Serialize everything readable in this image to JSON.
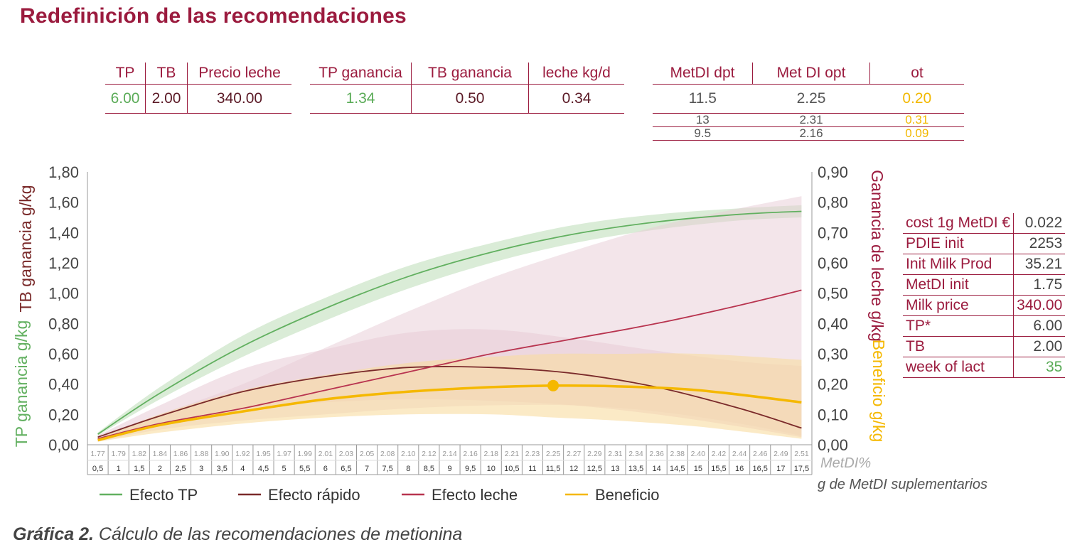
{
  "title": "Redefinición de las recomendaciones",
  "caption_bold": "Gráfica 2.",
  "caption_rest": " Cálculo de las recomendaciones de metionina",
  "table1": {
    "headers": [
      "TP",
      "TB",
      "Precio leche"
    ],
    "values": [
      "6.00",
      "2.00",
      "340.00"
    ]
  },
  "table2": {
    "headers": [
      "TP ganancia",
      "TB ganancia",
      "leche kg/d"
    ],
    "values": [
      "1.34",
      "0.50",
      "0.34"
    ]
  },
  "table3": {
    "headers": [
      "MetDI dpt",
      "Met DI opt",
      "ot"
    ],
    "rows": [
      [
        "11.5",
        "2.25",
        "0.20"
      ],
      [
        "13",
        "2.31",
        "0.31"
      ],
      [
        "9.5",
        "2.16",
        "0.09"
      ]
    ]
  },
  "side_table": [
    {
      "label": "cost 1g MetDI €",
      "value": "0.022"
    },
    {
      "label": "PDIE init",
      "value": "2253"
    },
    {
      "label": "Init Milk Prod",
      "value": "35.21"
    },
    {
      "label": "MetDI init",
      "value": "1.75"
    },
    {
      "label": "Milk price",
      "value": "340.00"
    },
    {
      "label": "TP*",
      "value": "6.00"
    },
    {
      "label": "TB",
      "value": "2.00"
    },
    {
      "label": "week of lact",
      "value": "35"
    }
  ],
  "colors": {
    "tp": "#62b060",
    "rapido": "#7a2a2a",
    "leche": "#b8344f",
    "beneficio": "#f5b800",
    "accent": "#9b1b3e",
    "tp_band": "#cde6c9",
    "leche_band": "#e8cbd6",
    "benef_band": "#f8dca0"
  },
  "chart_data": {
    "type": "line",
    "ylabel_left_top": "TB ganancia g/kg",
    "ylabel_left_bottom": "TP ganancia  g/kg",
    "ylabel_right_top": "Ganancia de leche g/kg",
    "ylabel_right_bottom": "Beneficio g/kg",
    "xlabel_top": "MetDI%",
    "xlabel_bottom": "g de MetDI suplementarios",
    "ylim_left": [
      0,
      1.8
    ],
    "ylim_right": [
      0,
      0.9
    ],
    "yticks_left": [
      "0,00",
      "0,20",
      "0,40",
      "0,60",
      "0,80",
      "1,00",
      "1,20",
      "1,40",
      "1,60",
      "1,80"
    ],
    "yticks_right": [
      "0,00",
      "0,10",
      "0,20",
      "0,30",
      "0,40",
      "0,50",
      "0,60",
      "0,70",
      "0,80",
      "0,90"
    ],
    "x_metdi_pct": [
      "1.77",
      "1.79",
      "1.82",
      "1.84",
      "1.86",
      "1.88",
      "1.90",
      "1.92",
      "1.95",
      "1.97",
      "1.99",
      "2.01",
      "2.03",
      "2.05",
      "2.08",
      "2.10",
      "2.12",
      "2.14",
      "2.16",
      "2.18",
      "2.21",
      "2.23",
      "2.25",
      "2.27",
      "2.29",
      "2.31",
      "2.34",
      "2.36",
      "2.38",
      "2.40",
      "2.42",
      "2.44",
      "2.46",
      "2.49",
      "2.51"
    ],
    "x_grams": [
      "0,5",
      "1",
      "1,5",
      "2",
      "2,5",
      "3",
      "3,5",
      "4",
      "4,5",
      "5",
      "5,5",
      "6",
      "6,5",
      "7",
      "7,5",
      "8",
      "8,5",
      "9",
      "9,5",
      "10",
      "10,5",
      "11",
      "11,5",
      "12",
      "12,5",
      "13",
      "13,5",
      "14",
      "14,5",
      "15",
      "15,5",
      "16",
      "16,5",
      "17",
      "17,5"
    ],
    "legend": [
      "Efecto TP",
      "Efecto rápido",
      "Efecto leche",
      "Beneficio"
    ],
    "optimum_marker": {
      "x": 11.5,
      "y": 0.195
    },
    "series": [
      {
        "name": "Efecto TP",
        "axis": "left",
        "x": [
          0.5,
          2,
          4,
          6,
          8,
          10,
          12,
          14,
          16,
          17.5
        ],
        "y": [
          0.07,
          0.34,
          0.65,
          0.9,
          1.11,
          1.27,
          1.39,
          1.47,
          1.52,
          1.54
        ],
        "band_lo": [
          0.06,
          0.3,
          0.58,
          0.82,
          1.03,
          1.2,
          1.33,
          1.42,
          1.48,
          1.5
        ],
        "band_hi": [
          0.08,
          0.38,
          0.72,
          0.97,
          1.18,
          1.33,
          1.45,
          1.52,
          1.56,
          1.58
        ]
      },
      {
        "name": "Efecto rápido",
        "axis": "left",
        "x": [
          0.5,
          2,
          4,
          6,
          8,
          10,
          12,
          14,
          16,
          17.5
        ],
        "y": [
          0.05,
          0.19,
          0.35,
          0.45,
          0.51,
          0.51,
          0.47,
          0.38,
          0.24,
          0.11
        ],
        "band_lo": [
          0.04,
          0.14,
          0.24,
          0.28,
          0.3,
          0.29,
          0.26,
          0.2,
          0.12,
          0.05
        ],
        "band_hi": [
          0.06,
          0.26,
          0.5,
          0.63,
          0.74,
          0.76,
          0.7,
          0.62,
          0.55,
          0.52
        ]
      },
      {
        "name": "Efecto leche",
        "axis": "right",
        "x": [
          0.5,
          2,
          4,
          6,
          8,
          10,
          12,
          14,
          16,
          17.5
        ],
        "y": [
          0.02,
          0.07,
          0.12,
          0.18,
          0.24,
          0.3,
          0.35,
          0.4,
          0.46,
          0.51
        ],
        "band_lo": [
          0.01,
          0.05,
          0.08,
          0.1,
          0.12,
          0.13,
          0.13,
          0.11,
          0.07,
          0.03
        ],
        "band_hi": [
          0.03,
          0.1,
          0.2,
          0.32,
          0.44,
          0.55,
          0.64,
          0.72,
          0.78,
          0.82
        ]
      },
      {
        "name": "Beneficio",
        "axis": "right",
        "x": [
          0.5,
          2,
          4,
          6,
          8,
          10,
          11.5,
          13,
          15,
          17.5
        ],
        "y": [
          0.015,
          0.065,
          0.11,
          0.15,
          0.175,
          0.19,
          0.195,
          0.193,
          0.18,
          0.14
        ],
        "band_lo": [
          0.01,
          0.04,
          0.07,
          0.09,
          0.1,
          0.1,
          0.09,
          0.08,
          0.06,
          0.02
        ],
        "band_hi": [
          0.02,
          0.1,
          0.18,
          0.23,
          0.27,
          0.29,
          0.3,
          0.3,
          0.3,
          0.28
        ]
      }
    ]
  }
}
